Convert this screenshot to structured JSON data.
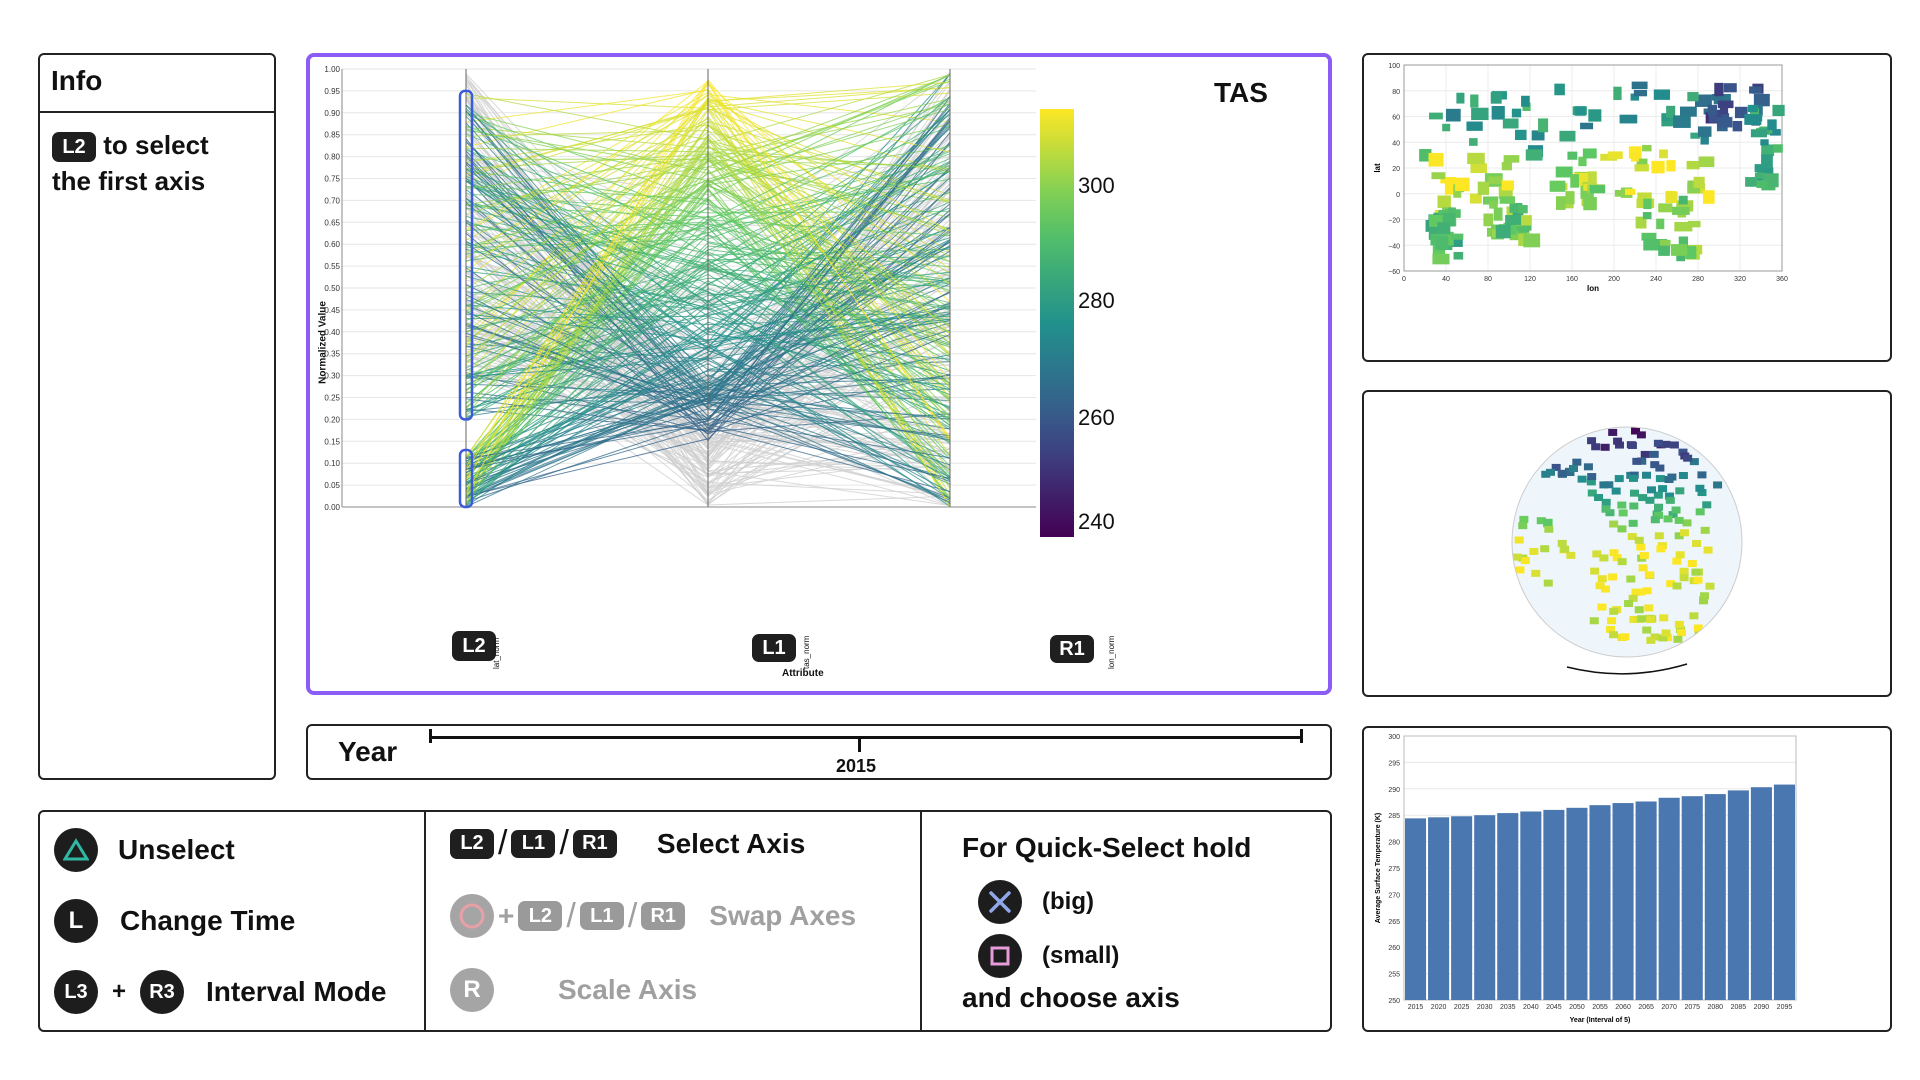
{
  "info": {
    "title": "Info",
    "button": "L2",
    "line1": "to select",
    "line2": "the first axis"
  },
  "pcp": {
    "ylabel": "Normalized Value",
    "xlabel": "Attribute",
    "yticks": [
      "1.00",
      "0.95",
      "0.90",
      "0.85",
      "0.80",
      "0.75",
      "0.70",
      "0.65",
      "0.60",
      "0.55",
      "0.50",
      "0.45",
      "0.40",
      "0.35",
      "0.30",
      "0.25",
      "0.20",
      "0.15",
      "0.10",
      "0.05",
      "0.00"
    ],
    "axes": [
      {
        "name": "lat_norm",
        "button": "L2"
      },
      {
        "name": "tas_norm",
        "button": "L1"
      },
      {
        "name": "lon_norm",
        "button": "R1"
      }
    ],
    "legend_title": "TAS",
    "legend_ticks": [
      "300",
      "280",
      "260",
      "240"
    ],
    "border_color": "#8b5cf6",
    "brush_color": "#3b5bdb"
  },
  "year": {
    "label": "Year",
    "value": "2015"
  },
  "controls": {
    "unselect": {
      "button": "triangle-icon",
      "label": "Unselect"
    },
    "change_time": {
      "button": "L",
      "label": "Change Time"
    },
    "interval": {
      "b1": "L3",
      "plus": "+",
      "b2": "R3",
      "label": "Interval Mode"
    },
    "select_axis": {
      "b1": "L2",
      "b2": "L1",
      "b3": "R1",
      "sep": "/",
      "label": "Select Axis"
    },
    "swap_axes": {
      "b0": "circle-icon",
      "plus": "+",
      "b1": "L2",
      "b2": "L1",
      "b3": "R1",
      "sep": "/",
      "label": "Swap Axes"
    },
    "scale_axis": {
      "button": "R",
      "label": "Scale Axis"
    },
    "quick": {
      "title": "For Quick-Select hold",
      "big": "(big)",
      "small": "(small)",
      "footer": "and choose axis"
    }
  },
  "map": {
    "ylabel": "lat",
    "xlabel": "lon",
    "yticks": [
      "100",
      "80",
      "60",
      "40",
      "20",
      "0",
      "−20",
      "−40",
      "−60"
    ],
    "xticks": [
      "0",
      "40",
      "80",
      "120",
      "160",
      "200",
      "240",
      "280",
      "320",
      "360"
    ]
  },
  "bar": {
    "ylabel": "Average Surface Temperature (K)",
    "xlabel": "Year (Interval of 5)",
    "yticks": [
      "300",
      "295",
      "290",
      "285",
      "280",
      "275",
      "270",
      "265",
      "260",
      "255",
      "250"
    ]
  },
  "chart_data": [
    {
      "type": "bar",
      "title": "",
      "xlabel": "Year (Interval of 5)",
      "ylabel": "Average Surface Temperature (K)",
      "ylim": [
        250,
        300
      ],
      "categories": [
        "2015",
        "2020",
        "2025",
        "2030",
        "2035",
        "2040",
        "2045",
        "2050",
        "2055",
        "2060",
        "2065",
        "2070",
        "2075",
        "2080",
        "2085",
        "2090",
        "2095"
      ],
      "values": [
        284.4,
        284.6,
        284.8,
        285.0,
        285.4,
        285.7,
        286.0,
        286.4,
        286.9,
        287.3,
        287.6,
        288.3,
        288.6,
        289.0,
        289.7,
        290.3,
        290.8
      ],
      "color": "#4a77b0"
    }
  ]
}
